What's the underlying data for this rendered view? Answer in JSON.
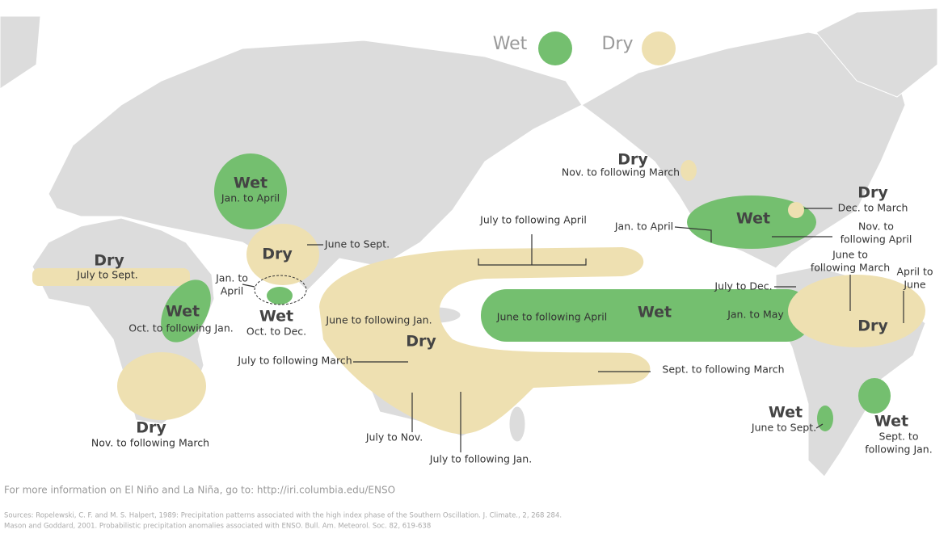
{
  "legend": [
    {
      "label": "Wet",
      "color": "#74bf6f"
    },
    {
      "label": "Dry",
      "color": "#eee0b1"
    }
  ],
  "labels": [
    [
      "Wet"
    ],
    [
      "Jan. to April"
    ],
    [
      "Dry"
    ],
    [
      "June to Sept."
    ],
    [
      "Jan. to",
      "April"
    ],
    [
      "Wet"
    ],
    [
      "Oct. to Dec."
    ],
    [
      "Dry"
    ],
    [
      "July to Sept."
    ],
    [
      "Wet"
    ],
    [
      "Oct. to following Jan."
    ],
    [
      "Dry"
    ],
    [
      "Nov. to following March"
    ],
    [
      "Dry"
    ],
    [
      "June to following Jan."
    ],
    [
      "July to following March"
    ],
    [
      "July to Nov."
    ],
    [
      "July to following Jan."
    ],
    [
      "July to following April"
    ],
    [
      "Sept. to following March"
    ],
    [
      "Wet"
    ],
    [
      "June to following April"
    ],
    [
      "Jan. to May"
    ],
    [
      "Dry"
    ],
    [
      "Nov. to following March"
    ],
    [
      "Wet"
    ],
    [
      "Jan. to April"
    ],
    [
      "Nov. to",
      "following April"
    ],
    [
      "Dry"
    ],
    [
      "Dec. to March"
    ],
    [
      "June to",
      "following March"
    ],
    [
      "Dry"
    ],
    [
      "July to Dec."
    ],
    [
      "April to",
      "June"
    ],
    [
      "Wet"
    ],
    [
      "Sept. to",
      "following Jan."
    ],
    [
      "Wet"
    ],
    [
      "June to Sept."
    ]
  ],
  "footer": {
    "info": "For more information on El Niño and La Niña, go to: http://iri.columbia.edu/ENSO",
    "sources": [
      "Sources: Ropelewski, C. F. and M. S. Halpert, 1989: Precipitation patterns associated with the high index phase of the Southern Oscillation. J. Climate., 2, 268 284.",
      "Mason and Goddard, 2001. Probabilistic precipitation anomalies associated with ENSO. Bull. Am. Meteorol. Soc. 82, 619-638"
    ]
  }
}
